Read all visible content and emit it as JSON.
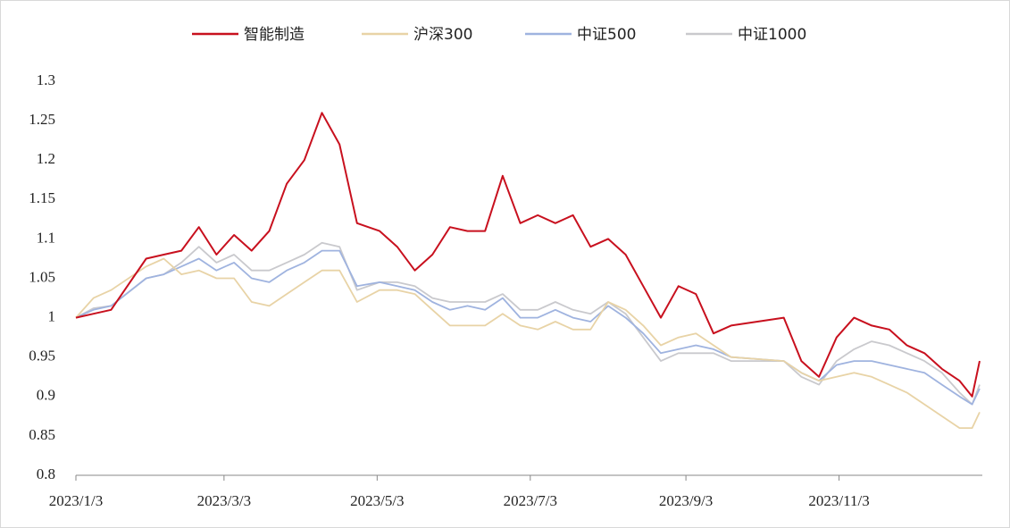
{
  "chart_data": {
    "type": "line",
    "x": [
      "2023/1/3",
      "2023/1/10",
      "2023/1/17",
      "2023/1/31",
      "2023/2/7",
      "2023/2/14",
      "2023/2/21",
      "2023/2/28",
      "2023/3/7",
      "2023/3/14",
      "2023/3/21",
      "2023/3/28",
      "2023/4/4",
      "2023/4/11",
      "2023/4/18",
      "2023/4/25",
      "2023/5/4",
      "2023/5/11",
      "2023/5/18",
      "2023/5/25",
      "2023/6/1",
      "2023/6/8",
      "2023/6/15",
      "2023/6/22",
      "2023/6/29",
      "2023/7/6",
      "2023/7/13",
      "2023/7/20",
      "2023/7/27",
      "2023/8/3",
      "2023/8/10",
      "2023/8/17",
      "2023/8/24",
      "2023/8/31",
      "2023/9/7",
      "2023/9/14",
      "2023/9/21",
      "2023/10/12",
      "2023/10/19",
      "2023/10/26",
      "2023/11/2",
      "2023/11/9",
      "2023/11/16",
      "2023/11/23",
      "2023/11/30",
      "2023/12/7",
      "2023/12/14",
      "2023/12/21",
      "2023/12/26",
      "2023/12/29"
    ],
    "series": [
      {
        "name": "智能制造",
        "color": "#c8101e",
        "values": [
          1.0,
          1.005,
          1.01,
          1.075,
          1.08,
          1.085,
          1.115,
          1.08,
          1.105,
          1.085,
          1.11,
          1.17,
          1.2,
          1.26,
          1.22,
          1.12,
          1.11,
          1.09,
          1.06,
          1.08,
          1.115,
          1.11,
          1.11,
          1.18,
          1.12,
          1.13,
          1.12,
          1.13,
          1.09,
          1.1,
          1.08,
          1.04,
          1.0,
          1.04,
          1.03,
          0.98,
          0.99,
          1.0,
          0.945,
          0.925,
          0.975,
          1.0,
          0.99,
          0.985,
          0.965,
          0.955,
          0.935,
          0.92,
          0.9,
          0.945
        ]
      },
      {
        "name": "沪深300",
        "color": "#e8d3a6",
        "values": [
          1.0,
          1.025,
          1.035,
          1.065,
          1.075,
          1.055,
          1.06,
          1.05,
          1.05,
          1.02,
          1.015,
          1.03,
          1.045,
          1.06,
          1.06,
          1.02,
          1.035,
          1.035,
          1.03,
          1.01,
          0.99,
          0.99,
          0.99,
          1.005,
          0.99,
          0.985,
          0.995,
          0.985,
          0.985,
          1.02,
          1.01,
          0.99,
          0.965,
          0.975,
          0.98,
          0.965,
          0.95,
          0.945,
          0.93,
          0.92,
          0.925,
          0.93,
          0.925,
          0.915,
          0.905,
          0.89,
          0.875,
          0.86,
          0.86,
          0.88
        ]
      },
      {
        "name": "中证500",
        "color": "#9fb3df",
        "values": [
          1.0,
          1.01,
          1.015,
          1.05,
          1.055,
          1.065,
          1.075,
          1.06,
          1.07,
          1.05,
          1.045,
          1.06,
          1.07,
          1.085,
          1.085,
          1.04,
          1.045,
          1.04,
          1.035,
          1.02,
          1.01,
          1.015,
          1.01,
          1.025,
          1.0,
          1.0,
          1.01,
          1.0,
          0.995,
          1.015,
          1.0,
          0.98,
          0.955,
          0.96,
          0.965,
          0.96,
          0.95,
          0.945,
          0.93,
          0.92,
          0.94,
          0.945,
          0.945,
          0.94,
          0.935,
          0.93,
          0.915,
          0.9,
          0.89,
          0.91
        ]
      },
      {
        "name": "中证1000",
        "color": "#c9c9cd",
        "values": [
          1.0,
          1.012,
          1.015,
          1.05,
          1.055,
          1.07,
          1.09,
          1.07,
          1.08,
          1.06,
          1.06,
          1.07,
          1.08,
          1.095,
          1.09,
          1.035,
          1.045,
          1.045,
          1.04,
          1.025,
          1.02,
          1.02,
          1.02,
          1.03,
          1.01,
          1.01,
          1.02,
          1.01,
          1.005,
          1.02,
          1.005,
          0.975,
          0.945,
          0.955,
          0.955,
          0.955,
          0.945,
          0.945,
          0.925,
          0.915,
          0.945,
          0.96,
          0.97,
          0.965,
          0.955,
          0.945,
          0.93,
          0.905,
          0.89,
          0.915
        ]
      }
    ],
    "ylim": [
      0.8,
      1.3
    ],
    "yticks": [
      0.8,
      0.85,
      0.9,
      0.95,
      1,
      1.05,
      1.1,
      1.15,
      1.2,
      1.25,
      1.3
    ],
    "xlim": [
      "2023/1/3",
      "2023/12/29"
    ],
    "xticks": [
      "2023/1/3",
      "2023/3/3",
      "2023/5/3",
      "2023/7/3",
      "2023/9/3",
      "2023/11/3"
    ],
    "legend": "top"
  }
}
